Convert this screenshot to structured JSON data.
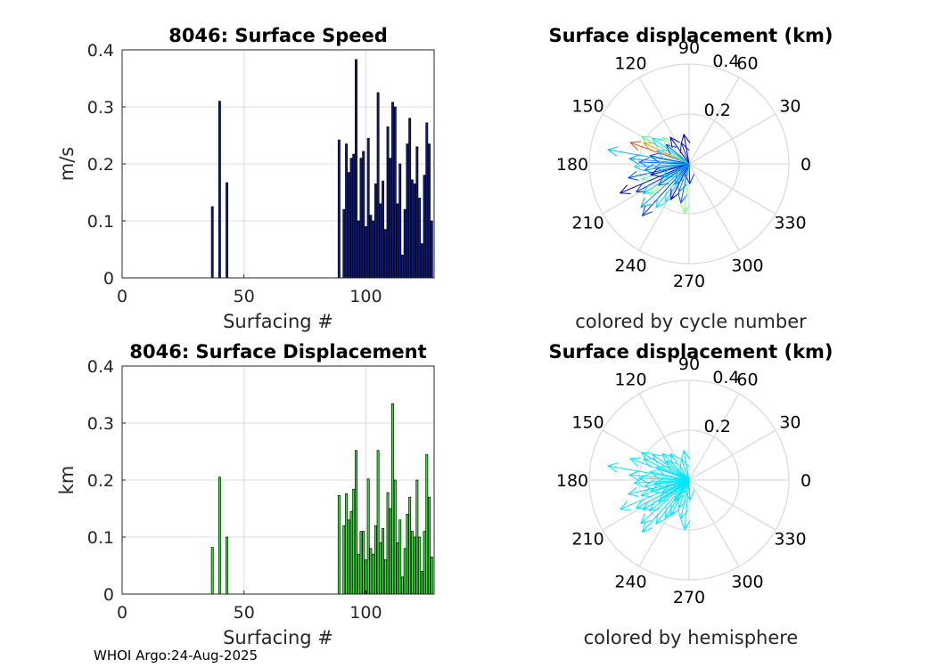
{
  "footer": "WHOI Argo:24-Aug-2025",
  "colors": {
    "speed_bar": "#0d1b8c",
    "disp_bar": "#33ee33",
    "hemisphere": "#00e5ff",
    "grid": "#dcdcdc"
  },
  "chart_data": [
    {
      "id": "speed",
      "type": "bar",
      "title": "8046: Surface Speed",
      "xlabel": "Surfacing #",
      "ylabel": "m/s",
      "xlim": [
        0,
        128
      ],
      "ylim": [
        0,
        0.4
      ],
      "xticks": [
        "0",
        "50",
        "100"
      ],
      "yticks": [
        "0",
        "0.1",
        "0.2",
        "0.3",
        "0.4"
      ],
      "x": [
        37,
        40,
        43,
        89,
        91,
        92,
        93,
        94,
        95,
        96,
        97,
        98,
        99,
        100,
        101,
        102,
        103,
        104,
        105,
        106,
        107,
        108,
        109,
        110,
        111,
        112,
        113,
        114,
        115,
        116,
        117,
        118,
        119,
        120,
        121,
        122,
        123,
        124,
        125,
        126,
        127
      ],
      "values": [
        0.125,
        0.31,
        0.167,
        0.242,
        0.12,
        0.235,
        0.185,
        0.21,
        0.217,
        0.383,
        0.1,
        0.21,
        0.222,
        0.09,
        0.245,
        0.11,
        0.1,
        0.165,
        0.325,
        0.13,
        0.17,
        0.085,
        0.265,
        0.21,
        0.308,
        0.3,
        0.13,
        0.2,
        0.04,
        0.12,
        0.235,
        0.28,
        0.172,
        0.165,
        0.23,
        0.14,
        0.06,
        0.18,
        0.272,
        0.235,
        0.1
      ]
    },
    {
      "id": "displacement",
      "type": "bar",
      "title": "8046: Surface Displacement",
      "xlabel": "Surfacing #",
      "ylabel": "km",
      "xlim": [
        0,
        128
      ],
      "ylim": [
        0,
        0.4
      ],
      "xticks": [
        "0",
        "50",
        "100"
      ],
      "yticks": [
        "0",
        "0.1",
        "0.2",
        "0.3",
        "0.4"
      ],
      "x": [
        37,
        40,
        43,
        89,
        91,
        92,
        93,
        94,
        95,
        96,
        97,
        98,
        99,
        100,
        101,
        102,
        103,
        104,
        105,
        106,
        107,
        108,
        109,
        110,
        111,
        112,
        113,
        114,
        115,
        116,
        117,
        118,
        119,
        120,
        121,
        122,
        123,
        124,
        125,
        126,
        127
      ],
      "values": [
        0.082,
        0.205,
        0.1,
        0.173,
        0.12,
        0.176,
        0.13,
        0.145,
        0.184,
        0.252,
        0.07,
        0.11,
        0.11,
        0.06,
        0.202,
        0.08,
        0.07,
        0.12,
        0.252,
        0.09,
        0.115,
        0.06,
        0.178,
        0.15,
        0.334,
        0.2,
        0.09,
        0.13,
        0.03,
        0.08,
        0.14,
        0.17,
        0.11,
        0.1,
        0.2,
        0.1,
        0.04,
        0.11,
        0.245,
        0.17,
        0.065
      ]
    },
    {
      "id": "polar-cycle",
      "type": "polar-quiver",
      "title": "Surface displacement (km)",
      "xlabel": "colored by cycle number",
      "rlim": [
        0,
        0.4
      ],
      "rticks": [
        "0.2",
        "0.4"
      ],
      "angle_labels": [
        "0",
        "30",
        "60",
        "90",
        "120",
        "150",
        "180",
        "210",
        "240",
        "270",
        "300",
        "330"
      ],
      "vectors": [
        {
          "angle": 170,
          "r": 0.33,
          "color": "#00c0ff"
        },
        {
          "angle": 160,
          "r": 0.25,
          "color": "#ff4000"
        },
        {
          "angle": 155,
          "r": 0.2,
          "color": "#ff9000"
        },
        {
          "angle": 150,
          "r": 0.22,
          "color": "#40ffb0"
        },
        {
          "angle": 145,
          "r": 0.18,
          "color": "#00e0ff"
        },
        {
          "angle": 140,
          "r": 0.12,
          "color": "#0040ff"
        },
        {
          "angle": 135,
          "r": 0.15,
          "color": "#80ff80"
        },
        {
          "angle": 125,
          "r": 0.13,
          "color": "#0000c0"
        },
        {
          "angle": 110,
          "r": 0.09,
          "color": "#0020ff"
        },
        {
          "angle": 100,
          "r": 0.12,
          "color": "#0000a0"
        },
        {
          "angle": 175,
          "r": 0.24,
          "color": "#00a0ff"
        },
        {
          "angle": 178,
          "r": 0.2,
          "color": "#0060ff"
        },
        {
          "angle": 183,
          "r": 0.22,
          "color": "#20d0ff"
        },
        {
          "angle": 188,
          "r": 0.18,
          "color": "#0080ff"
        },
        {
          "angle": 193,
          "r": 0.25,
          "color": "#0050ff"
        },
        {
          "angle": 198,
          "r": 0.2,
          "color": "#60ffa0"
        },
        {
          "angle": 203,
          "r": 0.3,
          "color": "#000090"
        },
        {
          "angle": 208,
          "r": 0.24,
          "color": "#0030ff"
        },
        {
          "angle": 213,
          "r": 0.22,
          "color": "#00d0ff"
        },
        {
          "angle": 218,
          "r": 0.2,
          "color": "#a0ff60"
        },
        {
          "angle": 222,
          "r": 0.26,
          "color": "#00a0ff"
        },
        {
          "angle": 228,
          "r": 0.28,
          "color": "#0040ff"
        },
        {
          "angle": 233,
          "r": 0.22,
          "color": "#00e0ff"
        },
        {
          "angle": 238,
          "r": 0.18,
          "color": "#40c0ff"
        },
        {
          "angle": 243,
          "r": 0.16,
          "color": "#0000c0"
        },
        {
          "angle": 250,
          "r": 0.12,
          "color": "#0080ff"
        },
        {
          "angle": 258,
          "r": 0.16,
          "color": "#0060ff"
        },
        {
          "angle": 265,
          "r": 0.2,
          "color": "#80ff80"
        },
        {
          "angle": 272,
          "r": 0.08,
          "color": "#0030ff"
        },
        {
          "angle": 186,
          "r": 0.14,
          "color": "#00b0ff"
        },
        {
          "angle": 196,
          "r": 0.16,
          "color": "#0000d0"
        },
        {
          "angle": 206,
          "r": 0.12,
          "color": "#00c0ff"
        },
        {
          "angle": 168,
          "r": 0.16,
          "color": "#0040e0"
        },
        {
          "angle": 158,
          "r": 0.14,
          "color": "#00e0ff"
        },
        {
          "angle": 215,
          "r": 0.15,
          "color": "#2060ff"
        },
        {
          "angle": 235,
          "r": 0.1,
          "color": "#00a0ff"
        }
      ]
    },
    {
      "id": "polar-hemisphere",
      "type": "polar-quiver",
      "title": "Surface displacement (km)",
      "xlabel": "colored by hemisphere",
      "rlim": [
        0,
        0.4
      ],
      "rticks": [
        "0.2",
        "0.4"
      ],
      "angle_labels": [
        "0",
        "30",
        "60",
        "90",
        "120",
        "150",
        "180",
        "210",
        "240",
        "270",
        "300",
        "330"
      ],
      "vectors": [
        {
          "angle": 170,
          "r": 0.33
        },
        {
          "angle": 160,
          "r": 0.25
        },
        {
          "angle": 155,
          "r": 0.2
        },
        {
          "angle": 150,
          "r": 0.22
        },
        {
          "angle": 145,
          "r": 0.18
        },
        {
          "angle": 140,
          "r": 0.12
        },
        {
          "angle": 135,
          "r": 0.15
        },
        {
          "angle": 125,
          "r": 0.13
        },
        {
          "angle": 110,
          "r": 0.09
        },
        {
          "angle": 100,
          "r": 0.12
        },
        {
          "angle": 175,
          "r": 0.24
        },
        {
          "angle": 178,
          "r": 0.2
        },
        {
          "angle": 183,
          "r": 0.22
        },
        {
          "angle": 188,
          "r": 0.18
        },
        {
          "angle": 193,
          "r": 0.25
        },
        {
          "angle": 198,
          "r": 0.2
        },
        {
          "angle": 203,
          "r": 0.3
        },
        {
          "angle": 208,
          "r": 0.24
        },
        {
          "angle": 213,
          "r": 0.22
        },
        {
          "angle": 218,
          "r": 0.2
        },
        {
          "angle": 222,
          "r": 0.26
        },
        {
          "angle": 228,
          "r": 0.28
        },
        {
          "angle": 233,
          "r": 0.22
        },
        {
          "angle": 238,
          "r": 0.18
        },
        {
          "angle": 243,
          "r": 0.16
        },
        {
          "angle": 250,
          "r": 0.12
        },
        {
          "angle": 258,
          "r": 0.16
        },
        {
          "angle": 265,
          "r": 0.2
        },
        {
          "angle": 272,
          "r": 0.08
        },
        {
          "angle": 186,
          "r": 0.14
        },
        {
          "angle": 196,
          "r": 0.16
        },
        {
          "angle": 206,
          "r": 0.12
        },
        {
          "angle": 168,
          "r": 0.16
        },
        {
          "angle": 158,
          "r": 0.14
        },
        {
          "angle": 215,
          "r": 0.15
        },
        {
          "angle": 235,
          "r": 0.1
        }
      ]
    }
  ]
}
